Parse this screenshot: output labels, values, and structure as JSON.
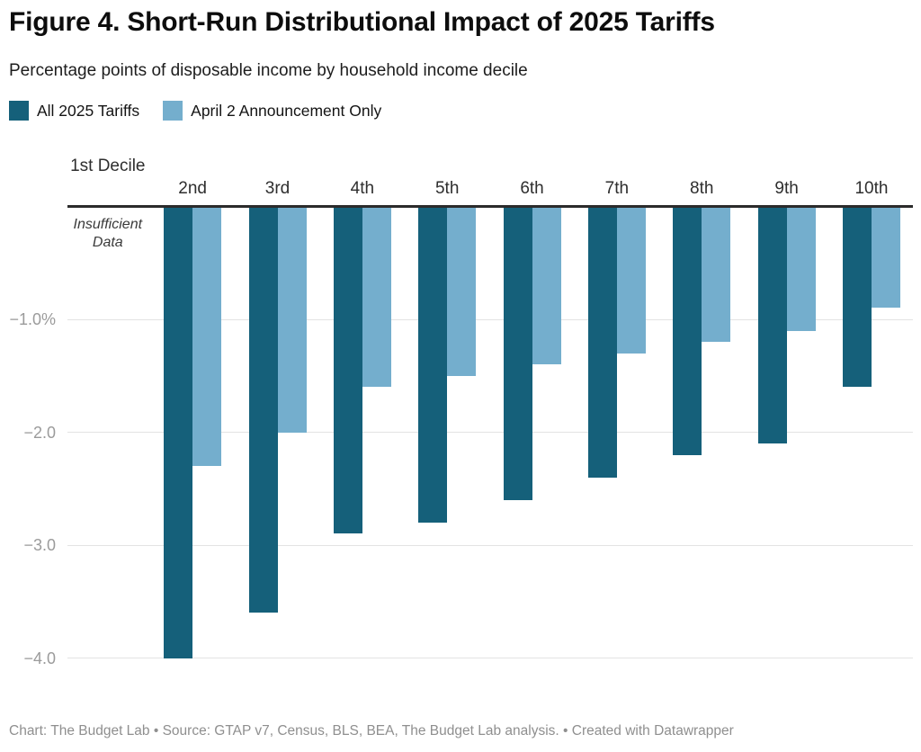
{
  "chart_data": {
    "type": "bar",
    "title": "Figure 4. Short-Run Distributional Impact of 2025 Tariffs",
    "subtitle": "Percentage points of disposable income by household income decile",
    "categories": [
      "1st Decile",
      "2nd",
      "3rd",
      "4th",
      "5th",
      "6th",
      "7th",
      "8th",
      "9th",
      "10th"
    ],
    "series": [
      {
        "name": "All 2025 Tariffs",
        "color": "#15607a",
        "values": [
          null,
          -4.0,
          -3.6,
          -2.9,
          -2.8,
          -2.6,
          -2.4,
          -2.2,
          -2.1,
          -1.6
        ]
      },
      {
        "name": "April 2 Announcement Only",
        "color": "#74aecd",
        "values": [
          null,
          -2.3,
          -2.0,
          -1.6,
          -1.5,
          -1.4,
          -1.3,
          -1.2,
          -1.1,
          -0.9
        ]
      }
    ],
    "yticks": [
      {
        "value": -1,
        "label": "−1.0%"
      },
      {
        "value": -2,
        "label": "−2.0"
      },
      {
        "value": -3,
        "label": "−3.0"
      },
      {
        "value": -4,
        "label": "−4.0"
      }
    ],
    "ylim": [
      -4.3,
      0
    ],
    "xlabel": "",
    "ylabel": "",
    "grid": true,
    "legend_position": "top",
    "annotation": "Insufficient Data"
  },
  "footer": {
    "text": "Chart: The Budget Lab • Source: GTAP v7, Census, BLS, BEA, The Budget Lab analysis. • Created with Datawrapper"
  }
}
